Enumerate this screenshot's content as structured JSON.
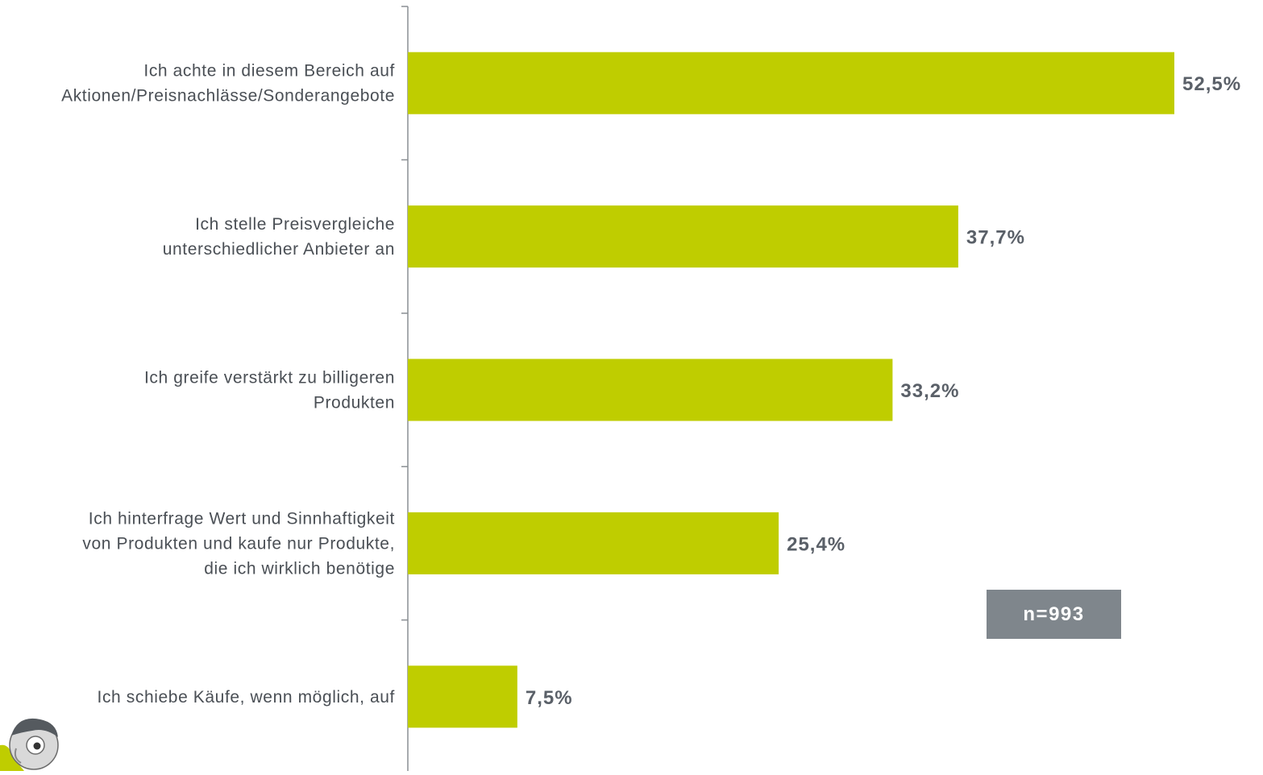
{
  "chart_data": {
    "type": "bar",
    "orientation": "horizontal",
    "categories": [
      [
        "Ich achte in diesem Bereich auf",
        "Aktionen/Preisnachlässe/Sonderangebote"
      ],
      [
        "Ich stelle Preisvergleiche",
        "unterschiedlicher Anbieter an"
      ],
      [
        "Ich greife verstärkt zu billigeren",
        "Produkten"
      ],
      [
        "Ich hinterfrage Wert und Sinnhaftigkeit",
        "von Produkten und kaufe nur Produkte,",
        "die ich wirklich benötige"
      ],
      [
        "Ich schiebe Käufe, wenn möglich, auf"
      ]
    ],
    "values": [
      52.5,
      37.7,
      33.2,
      25.4,
      7.5
    ],
    "value_labels": [
      "52,5%",
      "37,7%",
      "33,2%",
      "25,4%",
      "7,5%"
    ],
    "bar_color": "#bfcd00",
    "label_color": "#5a6068",
    "xlim": [
      0,
      55
    ],
    "grid": false,
    "legend": "none"
  },
  "badge": {
    "text": "n=993",
    "color": "#7f868c"
  },
  "mascot": {
    "icon": "cartoon-mascot-icon"
  }
}
